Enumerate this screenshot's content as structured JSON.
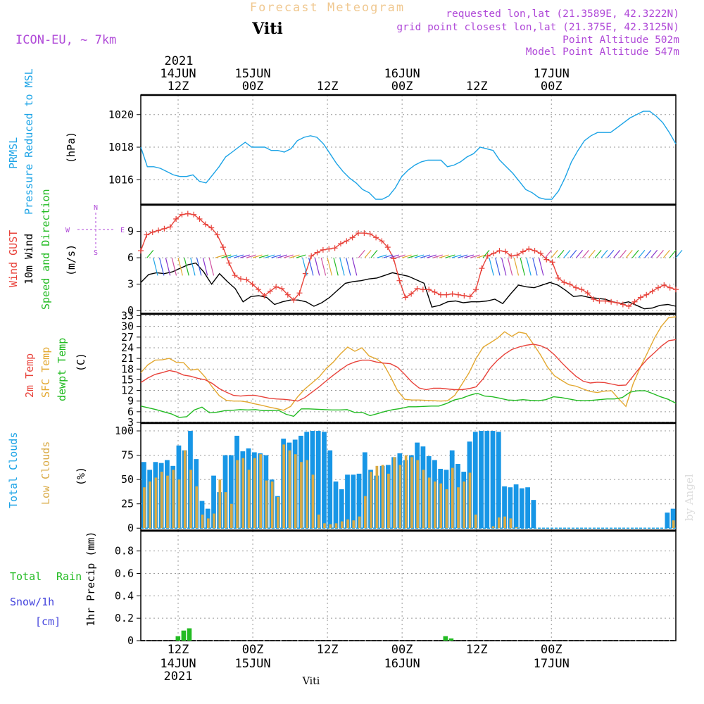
{
  "header": {
    "title": "Forecast Meteogram",
    "station": "Viti",
    "model": "ICON-EU, ~ 7km",
    "requested": "requested lon,lat (21.3589E, 42.3222N)",
    "gridpoint": "grid point closest lon,lat (21.375E, 42.3125N)",
    "point_alt": "Point Altitude 502m",
    "model_alt": "Model Point Altitude 547m",
    "credit": "by Angel",
    "footer_station": "Viti"
  },
  "colors": {
    "pressure": "#1ba3e6",
    "gust": "#e8423a",
    "wind": "#000000",
    "temp2m": "#e8423a",
    "sfc": "#e3a830",
    "dewpt": "#22bb22",
    "total_clouds": "#1796e6",
    "low_clouds": "#d9aa45",
    "rain": "#22bb22",
    "snow": "#4444dd",
    "title": "#f0c890",
    "meta": "#b04ad8"
  },
  "time_axis": {
    "top_year": "2021",
    "top_labels": [
      {
        "h": 12,
        "l1": "14JUN",
        "l2": "12Z"
      },
      {
        "h": 24,
        "l1": "15JUN",
        "l2": "00Z"
      },
      {
        "h": 36,
        "l1": "",
        "l2": "12Z"
      },
      {
        "h": 48,
        "l1": "16JUN",
        "l2": "00Z"
      },
      {
        "h": 60,
        "l1": "",
        "l2": "12Z"
      },
      {
        "h": 72,
        "l1": "17JUN",
        "l2": "00Z"
      }
    ],
    "bottom_labels": [
      {
        "h": 12,
        "l1": "12Z",
        "l2": "14JUN",
        "l3": "2021"
      },
      {
        "h": 24,
        "l1": "00Z",
        "l2": "15JUN",
        "l3": ""
      },
      {
        "h": 36,
        "l1": "12Z",
        "l2": "",
        "l3": ""
      },
      {
        "h": 48,
        "l1": "00Z",
        "l2": "16JUN",
        "l3": ""
      },
      {
        "h": 60,
        "l1": "12Z",
        "l2": "",
        "l3": ""
      },
      {
        "h": 72,
        "l1": "00Z",
        "l2": "17JUN",
        "l3": ""
      }
    ]
  },
  "chart_data": [
    {
      "type": "line",
      "name": "pressure",
      "title": "PRMSL Pressure Reduced to MSL",
      "label1": "PRMSL",
      "label2": "Pressure Reduced to MSL",
      "unit": "(hPa)",
      "ylim": [
        1014.5,
        1021.2
      ],
      "yticks": [
        1016,
        1018,
        1020
      ],
      "start_hour": 6,
      "values": [
        1018.0,
        1016.8,
        1016.8,
        1016.7,
        1016.5,
        1016.3,
        1016.2,
        1016.2,
        1016.3,
        1015.9,
        1015.8,
        1016.3,
        1016.8,
        1017.4,
        1017.7,
        1018.0,
        1018.3,
        1018.0,
        1018.0,
        1018.0,
        1017.8,
        1017.8,
        1017.7,
        1017.9,
        1018.4,
        1018.6,
        1018.7,
        1018.6,
        1018.2,
        1017.6,
        1017.0,
        1016.5,
        1016.1,
        1015.8,
        1015.4,
        1015.2,
        1014.8,
        1014.8,
        1015.0,
        1015.5,
        1016.2,
        1016.6,
        1016.9,
        1017.1,
        1017.2,
        1017.2,
        1017.2,
        1016.8,
        1016.9,
        1017.1,
        1017.4,
        1017.6,
        1018.0,
        1017.9,
        1017.8,
        1017.2,
        1016.8,
        1016.4,
        1015.9,
        1015.4,
        1015.2,
        1014.9,
        1014.8,
        1014.8,
        1015.3,
        1016.1,
        1017.1,
        1017.8,
        1018.4,
        1018.7,
        1018.9,
        1018.9,
        1018.9,
        1019.2,
        1019.5,
        1019.8,
        1020.0,
        1020.2,
        1020.2,
        1019.9,
        1019.5,
        1018.9,
        1018.2
      ]
    },
    {
      "type": "line",
      "name": "wind",
      "label1": "Wind GUST",
      "label2": "10m Wind",
      "label3": "Speed and Direction",
      "unit": "(m/s)",
      "compass": [
        "N",
        "W",
        "E",
        "S"
      ],
      "ylim": [
        -0.3,
        12.0
      ],
      "yticks": [
        0,
        3,
        6,
        9
      ],
      "start_hour": 6,
      "gust": [
        6.8,
        8.6,
        8.9,
        9.1,
        9.3,
        9.5,
        10.4,
        10.9,
        11.0,
        10.9,
        10.4,
        9.8,
        9.4,
        8.6,
        7.2,
        5.4,
        4.0,
        3.6,
        3.5,
        3.0,
        2.4,
        1.7,
        2.2,
        2.7,
        2.5,
        1.8,
        1.2,
        2.0,
        4.2,
        6.2,
        6.6,
        6.9,
        7.0,
        7.1,
        7.6,
        7.9,
        8.3,
        8.8,
        8.8,
        8.7,
        8.3,
        7.9,
        7.2,
        5.9,
        3.4,
        1.5,
        1.9,
        2.5,
        2.4,
        2.4,
        2.1,
        1.8,
        1.8,
        1.9,
        1.8,
        1.7,
        1.6,
        2.4,
        4.8,
        6.2,
        6.5,
        6.8,
        6.7,
        6.2,
        6.3,
        6.7,
        7.0,
        6.8,
        6.5,
        5.8,
        5.5,
        3.7,
        3.2,
        3.0,
        2.6,
        2.4,
        2.0,
        1.3,
        1.1,
        1.1,
        1.0,
        0.9,
        0.7,
        0.5,
        1.0,
        1.5,
        1.8,
        2.2,
        2.6,
        2.9,
        2.6,
        2.4
      ],
      "wind": [
        3.2,
        4.1,
        4.3,
        4.2,
        4.4,
        4.8,
        5.2,
        5.4,
        4.4,
        3.0,
        4.2,
        3.3,
        2.5,
        1.0,
        1.6,
        1.7,
        1.5,
        0.7,
        1.0,
        1.2,
        1.2,
        1.0,
        0.5,
        0.9,
        1.5,
        2.3,
        3.1,
        3.3,
        3.4,
        3.6,
        3.7,
        4.0,
        4.3,
        4.1,
        3.9,
        3.5,
        3.1,
        0.4,
        0.6,
        1.0,
        1.1,
        0.9,
        1.0,
        1.0,
        1.1,
        1.3,
        0.8,
        1.9,
        2.9,
        2.7,
        2.6,
        2.9,
        3.2,
        2.9,
        2.3,
        1.6,
        1.7,
        1.5,
        1.4,
        1.3,
        1.0,
        0.8,
        1.0,
        0.6,
        0.2,
        0.3,
        0.6,
        0.7,
        0.5
      ]
    },
    {
      "type": "line",
      "name": "temperature",
      "label1": "2m Temp",
      "label2": "SFC Temp",
      "label3": "dewpt Temp",
      "unit": "(C)",
      "ylim": [
        3.0,
        33.5
      ],
      "yticks": [
        3,
        6,
        9,
        12,
        15,
        18,
        21,
        24,
        27,
        30,
        33
      ],
      "start_hour": 6,
      "temp2m": [
        14.2,
        15.5,
        16.5,
        17.0,
        17.6,
        17.2,
        16.3,
        16.0,
        15.4,
        15.0,
        14.0,
        12.5,
        11.5,
        10.6,
        10.4,
        10.6,
        10.6,
        10.2,
        9.8,
        9.6,
        9.5,
        9.3,
        9.0,
        10.0,
        11.5,
        13.0,
        14.7,
        16.3,
        17.8,
        19.2,
        20.0,
        20.5,
        20.5,
        20.0,
        19.7,
        19.5,
        18.5,
        16.5,
        14.3,
        12.7,
        12.2,
        12.6,
        12.6,
        12.4,
        12.2,
        12.2,
        12.5,
        13.0,
        15.3,
        18.3,
        20.5,
        22.2,
        23.5,
        24.2,
        24.7,
        25.0,
        24.6,
        23.7,
        22.0,
        19.8,
        17.8,
        16.0,
        14.6,
        14.1,
        14.3,
        14.2,
        13.8,
        13.4,
        13.5,
        16.0,
        18.5,
        20.8,
        22.6,
        24.5,
        26.0,
        26.3
      ],
      "sfc": [
        17.0,
        19.2,
        20.5,
        20.6,
        21.0,
        19.9,
        19.8,
        17.7,
        18.0,
        15.8,
        13.0,
        10.5,
        9.2,
        9.0,
        9.0,
        8.7,
        8.2,
        7.8,
        7.3,
        6.9,
        6.4,
        7.5,
        10.2,
        12.4,
        14.1,
        15.8,
        18.2,
        20.0,
        22.3,
        24.2,
        23.0,
        24.0,
        21.7,
        20.9,
        19.5,
        15.9,
        11.9,
        9.5,
        9.3,
        9.3,
        9.2,
        9.1,
        9.0,
        9.1,
        10.6,
        13.7,
        16.9,
        21.0,
        24.2,
        25.4,
        26.7,
        28.5,
        27.2,
        28.4,
        28.0,
        25.1,
        22.1,
        18.6,
        16.1,
        14.8,
        13.6,
        13.2,
        12.4,
        11.7,
        11.4,
        11.8,
        11.9,
        9.6,
        7.5,
        13.8,
        18.4,
        22.5,
        26.7,
        30.1,
        32.5,
        32.7
      ],
      "dewpt": [
        7.6,
        7.1,
        6.6,
        6.0,
        5.4,
        4.4,
        4.6,
        6.5,
        7.3,
        5.7,
        5.9,
        6.3,
        6.4,
        6.6,
        6.5,
        6.6,
        6.3,
        6.3,
        6.4,
        5.3,
        4.7,
        6.8,
        6.8,
        6.7,
        6.6,
        6.5,
        6.5,
        6.6,
        5.8,
        5.8,
        4.9,
        5.5,
        6.1,
        6.6,
        6.9,
        7.4,
        7.4,
        7.5,
        7.6,
        7.6,
        8.3,
        9.3,
        9.8,
        10.6,
        11.2,
        10.4,
        10.2,
        9.8,
        9.3,
        9.2,
        9.4,
        9.2,
        9.1,
        9.4,
        10.2,
        10.0,
        9.6,
        9.2,
        9.1,
        9.2,
        9.4,
        9.6,
        9.6,
        10.0,
        11.5,
        11.9,
        11.9,
        11.1,
        10.2,
        9.5,
        8.4
      ]
    },
    {
      "type": "bar",
      "name": "clouds",
      "label1": "Total Clouds",
      "label2": "Low Clouds",
      "unit": "(%)",
      "ylim": [
        -2,
        108
      ],
      "yticks": [
        0,
        25,
        50,
        75,
        100
      ],
      "start_hour": 6,
      "total": [
        68,
        60,
        68,
        67,
        70,
        64,
        85,
        80,
        100,
        71,
        28,
        20,
        54,
        37,
        75,
        75,
        95,
        79,
        82,
        78,
        77,
        75,
        50,
        33,
        92,
        88,
        91,
        95,
        99,
        100,
        100,
        99,
        80,
        48,
        40,
        55,
        55,
        56,
        78,
        60,
        54,
        64,
        65,
        73,
        77,
        70,
        75,
        88,
        84,
        74,
        70,
        61,
        60,
        80,
        66,
        58,
        89,
        99,
        100,
        100,
        100,
        99,
        43,
        42,
        45,
        41,
        42,
        29,
        0,
        0,
        0,
        0,
        0,
        0,
        0,
        0,
        0,
        0,
        0,
        0,
        0,
        0,
        0,
        0,
        0,
        0,
        0,
        0,
        0,
        0,
        16,
        20
      ],
      "low": [
        42,
        48,
        52,
        58,
        54,
        60,
        50,
        80,
        60,
        43,
        14,
        10,
        15,
        50,
        37,
        25,
        70,
        72,
        60,
        72,
        76,
        49,
        48,
        32,
        86,
        80,
        76,
        68,
        70,
        55,
        14,
        5,
        4,
        5,
        7,
        9,
        8,
        12,
        33,
        58,
        64,
        65,
        56,
        73,
        65,
        75,
        73,
        70,
        60,
        52,
        48,
        46,
        40,
        62,
        42,
        48,
        57,
        14,
        0,
        0,
        2,
        11,
        12,
        10,
        1,
        0,
        0,
        0,
        0,
        0,
        0,
        0,
        0,
        0,
        0,
        0,
        0,
        0,
        0,
        0,
        0,
        0,
        0,
        0,
        0,
        0,
        0,
        0,
        0,
        0,
        0,
        8
      ]
    },
    {
      "type": "bar",
      "name": "precip",
      "label1": "Total",
      "label2": "Rain",
      "label3": "Snow/1h",
      "label4": "[cm]",
      "unit": "1hr Precip (mm)",
      "ylim": [
        0,
        0.98
      ],
      "yticks": [
        0,
        0.2,
        0.4,
        0.6,
        0.8
      ],
      "ytick_labels": [
        "0",
        "0.2",
        "0.4",
        "0.6",
        "0.8"
      ],
      "start_hour": 6,
      "rain": [
        0,
        0,
        0,
        0,
        0,
        0,
        0.04,
        0.09,
        0.11,
        0,
        0,
        0,
        0,
        0,
        0,
        0,
        0,
        0,
        0,
        0,
        0,
        0,
        0,
        0,
        0,
        0,
        0,
        0,
        0,
        0,
        0,
        0,
        0,
        0,
        0,
        0,
        0,
        0,
        0,
        0,
        0,
        0,
        0,
        0,
        0,
        0,
        0,
        0,
        0,
        0,
        0,
        0,
        0,
        0.04,
        0.02,
        0,
        0,
        0,
        0,
        0,
        0,
        0,
        0,
        0,
        0,
        0,
        0,
        0,
        0,
        0,
        0,
        0,
        0,
        0,
        0,
        0,
        0,
        0,
        0,
        0,
        0,
        0,
        0,
        0,
        0,
        0,
        0,
        0,
        0,
        0,
        0,
        0,
        0,
        0
      ]
    }
  ]
}
